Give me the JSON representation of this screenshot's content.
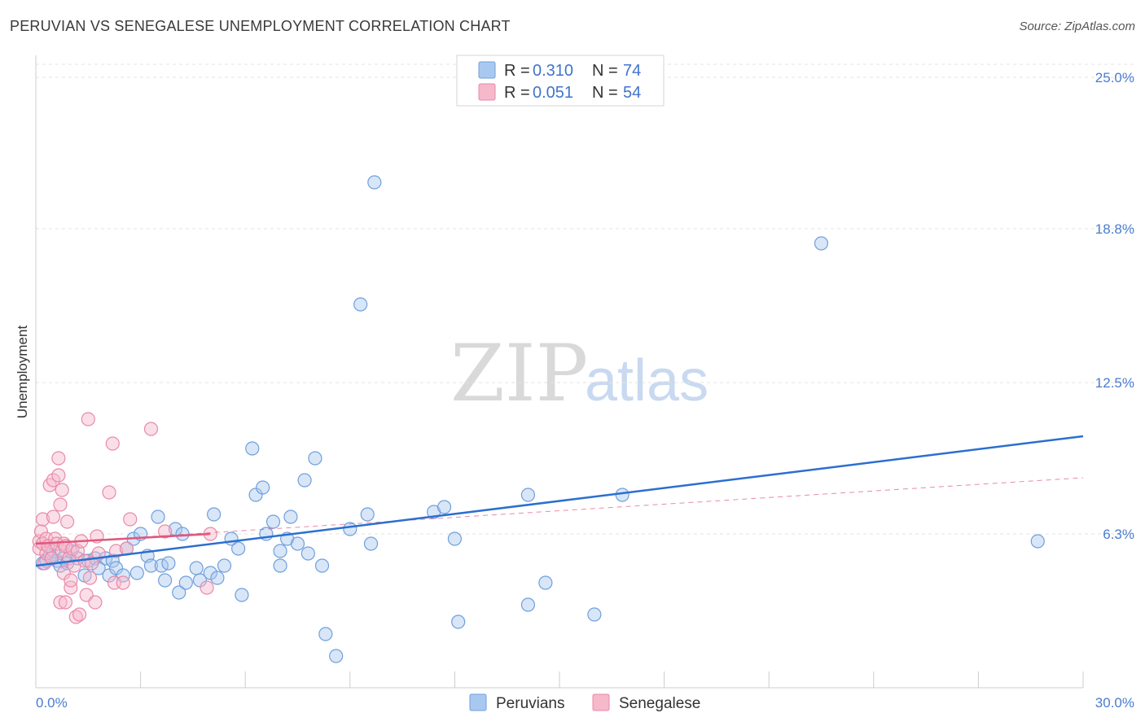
{
  "header": {
    "title": "PERUVIAN VS SENEGALESE UNEMPLOYMENT CORRELATION CHART",
    "source": "Source: ZipAtlas.com"
  },
  "watermark": {
    "zip": "ZIP",
    "atlas": "atlas"
  },
  "colors": {
    "peruvians_fill": "#a9c8f0",
    "peruvians_stroke": "#6f9fdc",
    "peruvians_line": "#2b6fcf",
    "senegalese_fill": "#f6b8cb",
    "senegalese_stroke": "#e88aa8",
    "senegalese_line": "#e0577f",
    "tick_text": "#4a7bd0"
  },
  "legend": {
    "r_label": "R =",
    "n_label": "N =",
    "peruvians": {
      "r": "0.310",
      "n": "74"
    },
    "senegalese": {
      "r": "0.051",
      "n": "54"
    }
  },
  "bottom_legend": {
    "peruvians": "Peruvians",
    "senegalese": "Senegalese"
  },
  "chart_data": {
    "type": "scatter",
    "title": "PERUVIAN VS SENEGALESE UNEMPLOYMENT CORRELATION CHART",
    "xlabel": "",
    "ylabel": "Unemployment",
    "xlim": [
      0,
      30
    ],
    "ylim": [
      0,
      25.9
    ],
    "x_tick_labels": [
      "0.0%",
      "30.0%"
    ],
    "y_ticks": [
      6.3,
      12.5,
      18.8,
      25.0
    ],
    "y_tick_labels": [
      "6.3%",
      "12.5%",
      "18.8%",
      "25.0%"
    ],
    "grid": "horizontal dashed",
    "legend_position": "top-center",
    "series": [
      {
        "name": "Peruvians",
        "r": 0.31,
        "n": 74,
        "trend": {
          "x": [
            0,
            30
          ],
          "y": [
            5.0,
            10.3
          ]
        },
        "points": [
          [
            0.2,
            5.1
          ],
          [
            0.3,
            5.2
          ],
          [
            0.4,
            5.4
          ],
          [
            0.5,
            5.6
          ],
          [
            0.6,
            5.2
          ],
          [
            0.7,
            5.0
          ],
          [
            0.8,
            5.3
          ],
          [
            0.9,
            5.1
          ],
          [
            1.0,
            5.6
          ],
          [
            1.2,
            5.3
          ],
          [
            1.4,
            4.6
          ],
          [
            1.5,
            5.2
          ],
          [
            1.7,
            5.3
          ],
          [
            1.8,
            4.9
          ],
          [
            2.0,
            5.3
          ],
          [
            2.1,
            4.6
          ],
          [
            2.2,
            5.2
          ],
          [
            2.3,
            4.9
          ],
          [
            2.5,
            4.6
          ],
          [
            2.6,
            5.7
          ],
          [
            2.8,
            6.1
          ],
          [
            2.9,
            4.7
          ],
          [
            3.0,
            6.3
          ],
          [
            3.2,
            5.4
          ],
          [
            3.3,
            5.0
          ],
          [
            3.5,
            7.0
          ],
          [
            3.6,
            5.0
          ],
          [
            3.7,
            4.4
          ],
          [
            3.8,
            5.1
          ],
          [
            4.0,
            6.5
          ],
          [
            4.1,
            3.9
          ],
          [
            4.2,
            6.3
          ],
          [
            4.3,
            4.3
          ],
          [
            4.6,
            4.9
          ],
          [
            4.7,
            4.4
          ],
          [
            5.0,
            4.7
          ],
          [
            5.1,
            7.1
          ],
          [
            5.2,
            4.5
          ],
          [
            5.4,
            5.0
          ],
          [
            5.6,
            6.1
          ],
          [
            5.8,
            5.7
          ],
          [
            5.9,
            3.8
          ],
          [
            6.2,
            9.8
          ],
          [
            6.3,
            7.9
          ],
          [
            6.5,
            8.2
          ],
          [
            6.6,
            6.3
          ],
          [
            6.8,
            6.8
          ],
          [
            7.0,
            5.0
          ],
          [
            7.0,
            5.6
          ],
          [
            7.2,
            6.1
          ],
          [
            7.3,
            7.0
          ],
          [
            7.5,
            5.9
          ],
          [
            7.7,
            8.5
          ],
          [
            7.8,
            5.5
          ],
          [
            8.0,
            9.4
          ],
          [
            8.2,
            5.0
          ],
          [
            8.3,
            2.2
          ],
          [
            8.6,
            1.3
          ],
          [
            9.0,
            6.5
          ],
          [
            9.3,
            15.7
          ],
          [
            9.5,
            7.1
          ],
          [
            9.6,
            5.9
          ],
          [
            9.7,
            20.7
          ],
          [
            11.4,
            7.2
          ],
          [
            11.7,
            7.4
          ],
          [
            12.0,
            6.1
          ],
          [
            12.1,
            2.7
          ],
          [
            14.1,
            7.9
          ],
          [
            14.1,
            3.4
          ],
          [
            14.6,
            4.3
          ],
          [
            16.0,
            3.0
          ],
          [
            16.8,
            7.9
          ],
          [
            22.5,
            18.2
          ],
          [
            28.7,
            6.0
          ]
        ]
      },
      {
        "name": "Senegalese",
        "r": 0.051,
        "n": 54,
        "trend": {
          "x": [
            0,
            5
          ],
          "y": [
            5.9,
            6.3
          ]
        },
        "trend_extended": {
          "x": [
            0,
            30
          ],
          "y": [
            5.9,
            8.6
          ]
        },
        "points": [
          [
            0.1,
            6.0
          ],
          [
            0.1,
            5.7
          ],
          [
            0.15,
            6.4
          ],
          [
            0.2,
            5.9
          ],
          [
            0.2,
            6.9
          ],
          [
            0.25,
            5.1
          ],
          [
            0.3,
            6.1
          ],
          [
            0.3,
            5.5
          ],
          [
            0.35,
            5.8
          ],
          [
            0.4,
            8.3
          ],
          [
            0.45,
            5.3
          ],
          [
            0.5,
            7.0
          ],
          [
            0.5,
            8.5
          ],
          [
            0.55,
            6.1
          ],
          [
            0.6,
            5.9
          ],
          [
            0.65,
            9.4
          ],
          [
            0.65,
            8.7
          ],
          [
            0.7,
            7.5
          ],
          [
            0.7,
            3.5
          ],
          [
            0.75,
            8.1
          ],
          [
            0.75,
            5.6
          ],
          [
            0.8,
            5.9
          ],
          [
            0.8,
            4.7
          ],
          [
            0.85,
            3.5
          ],
          [
            0.85,
            5.8
          ],
          [
            0.9,
            6.8
          ],
          [
            0.95,
            5.3
          ],
          [
            1.0,
            4.1
          ],
          [
            1.0,
            4.4
          ],
          [
            1.05,
            5.7
          ],
          [
            1.1,
            5.0
          ],
          [
            1.15,
            2.9
          ],
          [
            1.2,
            5.6
          ],
          [
            1.25,
            3.0
          ],
          [
            1.3,
            6.0
          ],
          [
            1.4,
            5.2
          ],
          [
            1.45,
            3.8
          ],
          [
            1.5,
            11.0
          ],
          [
            1.55,
            4.5
          ],
          [
            1.6,
            5.1
          ],
          [
            1.7,
            3.5
          ],
          [
            1.75,
            6.2
          ],
          [
            1.8,
            5.5
          ],
          [
            2.1,
            8.0
          ],
          [
            2.2,
            10.0
          ],
          [
            2.25,
            4.3
          ],
          [
            2.3,
            5.6
          ],
          [
            2.5,
            4.3
          ],
          [
            2.6,
            5.7
          ],
          [
            2.7,
            6.9
          ],
          [
            3.3,
            10.6
          ],
          [
            3.7,
            6.4
          ],
          [
            4.9,
            4.1
          ],
          [
            5.0,
            6.3
          ]
        ]
      }
    ]
  }
}
